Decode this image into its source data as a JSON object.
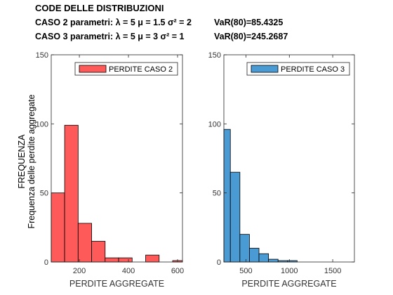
{
  "header": {
    "title": "CODE DELLE DISTRIBUZIONI",
    "case2": "CASO 2 parametri: λ = 5  μ = 1.5  σ² = 2",
    "case2_var": "VaR(80)=85.4325",
    "case3": "CASO 3 parametri: λ = 5  μ = 3  σ² = 1",
    "case3_var": "VaR(80)=245.2687"
  },
  "ylabel_line1": "FREQUENZA",
  "ylabel_line2": "Frequenza delle perdite aggregate",
  "chart_data": [
    {
      "type": "bar",
      "series": [
        {
          "name": "PERDITE CASO 2",
          "color": "#ff5a5a"
        }
      ],
      "bin_edges": [
        85.43,
        140,
        195,
        250,
        305,
        360,
        415,
        470,
        525,
        580,
        620
      ],
      "values": [
        50,
        99,
        28,
        15,
        3,
        3,
        0,
        5,
        0,
        1
      ],
      "xlim": [
        85.43,
        620
      ],
      "ylim": [
        0,
        150
      ],
      "xticks": [
        200,
        400,
        600
      ],
      "yticks": [
        0,
        50,
        100,
        150
      ],
      "xlabel": "PERDITE AGGREGATE",
      "legend": "top-right"
    },
    {
      "type": "bar",
      "series": [
        {
          "name": "PERDITE CASO 3",
          "color": "#4a9ad4"
        }
      ],
      "bin_edges": [
        245.27,
        320,
        430,
        540,
        650,
        760,
        870,
        980,
        1090,
        1200,
        1310,
        1420,
        1530,
        1640,
        1750
      ],
      "values": [
        96,
        65,
        20,
        10,
        6,
        2,
        1,
        1,
        0,
        0,
        0,
        0,
        0,
        0
      ],
      "xlim": [
        245.27,
        1750
      ],
      "ylim": [
        0,
        150
      ],
      "xticks": [
        500,
        1000,
        1500
      ],
      "yticks": [
        0,
        50,
        100,
        150
      ],
      "xlabel": "PERDITE AGGREGATE",
      "legend": "top-right"
    }
  ]
}
